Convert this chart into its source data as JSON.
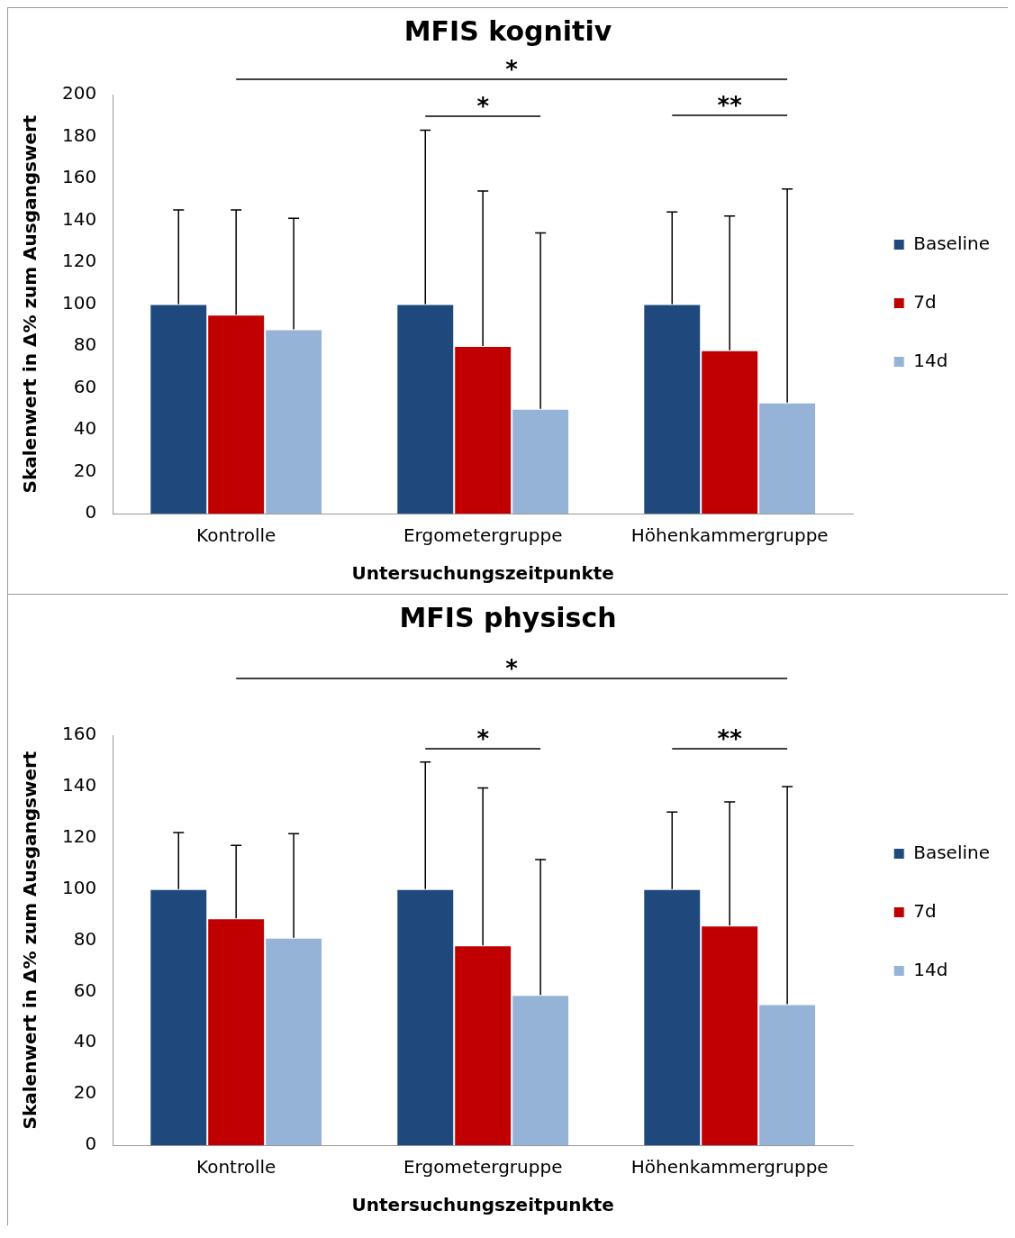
{
  "chart_data": [
    {
      "type": "bar",
      "title": "MFIS kognitiv",
      "xlabel": "Untersuchungszeitpunkte",
      "ylabel": "Skalenwert in Δ% zum Ausgangswert",
      "categories": [
        "Kontrolle",
        "Ergometergruppe",
        "Höhenkammergruppe"
      ],
      "series": [
        {
          "name": "Baseline",
          "color": "#1f497d",
          "values": [
            100,
            100,
            100
          ],
          "errors": [
            [
              100,
              145
            ],
            [
              100,
              183
            ],
            [
              100,
              144
            ]
          ]
        },
        {
          "name": "7d",
          "color": "#c00000",
          "values": [
            95,
            80,
            78
          ],
          "errors": [
            [
              95,
              145
            ],
            [
              80,
              154
            ],
            [
              78,
              142
            ]
          ]
        },
        {
          "name": "14d",
          "color": "#95b3d7",
          "values": [
            88,
            50,
            53
          ],
          "errors": [
            [
              88,
              141
            ],
            [
              50,
              134
            ],
            [
              53,
              155
            ]
          ]
        }
      ],
      "ylim": [
        0,
        200
      ],
      "yticks": [
        0,
        20,
        40,
        60,
        80,
        100,
        120,
        140,
        160,
        180,
        200
      ],
      "grid": false,
      "legend": "right",
      "annotations": [
        "*",
        "*",
        "**"
      ]
    },
    {
      "type": "bar",
      "title": "MFIS physisch",
      "xlabel": "Untersuchungszeitpunkte",
      "ylabel": "Skalenwert in Δ% zum Ausgangswert",
      "categories": [
        "Kontrolle",
        "Ergometergruppe",
        "Höhenkammergruppe"
      ],
      "series": [
        {
          "name": "Baseline",
          "color": "#1f497d",
          "values": [
            100,
            100,
            100
          ],
          "errors": [
            [
              100,
              122
            ],
            [
              100,
              149.5
            ],
            [
              100,
              130
            ]
          ]
        },
        {
          "name": "7d",
          "color": "#c00000",
          "values": [
            88.5,
            78,
            85.7
          ],
          "errors": [
            [
              88.5,
              117
            ],
            [
              78,
              139.4
            ],
            [
              85.7,
              134
            ]
          ]
        },
        {
          "name": "14d",
          "color": "#95b3d7",
          "values": [
            81,
            58.6,
            55
          ],
          "errors": [
            [
              81,
              121.6
            ],
            [
              58.6,
              111.5
            ],
            [
              55,
              140
            ]
          ]
        }
      ],
      "ylim": [
        0,
        160
      ],
      "yticks": [
        0,
        20,
        40,
        60,
        80,
        100,
        120,
        140,
        160
      ],
      "grid": false,
      "legend": "right",
      "annotations": [
        "*",
        "*",
        "**"
      ]
    }
  ]
}
